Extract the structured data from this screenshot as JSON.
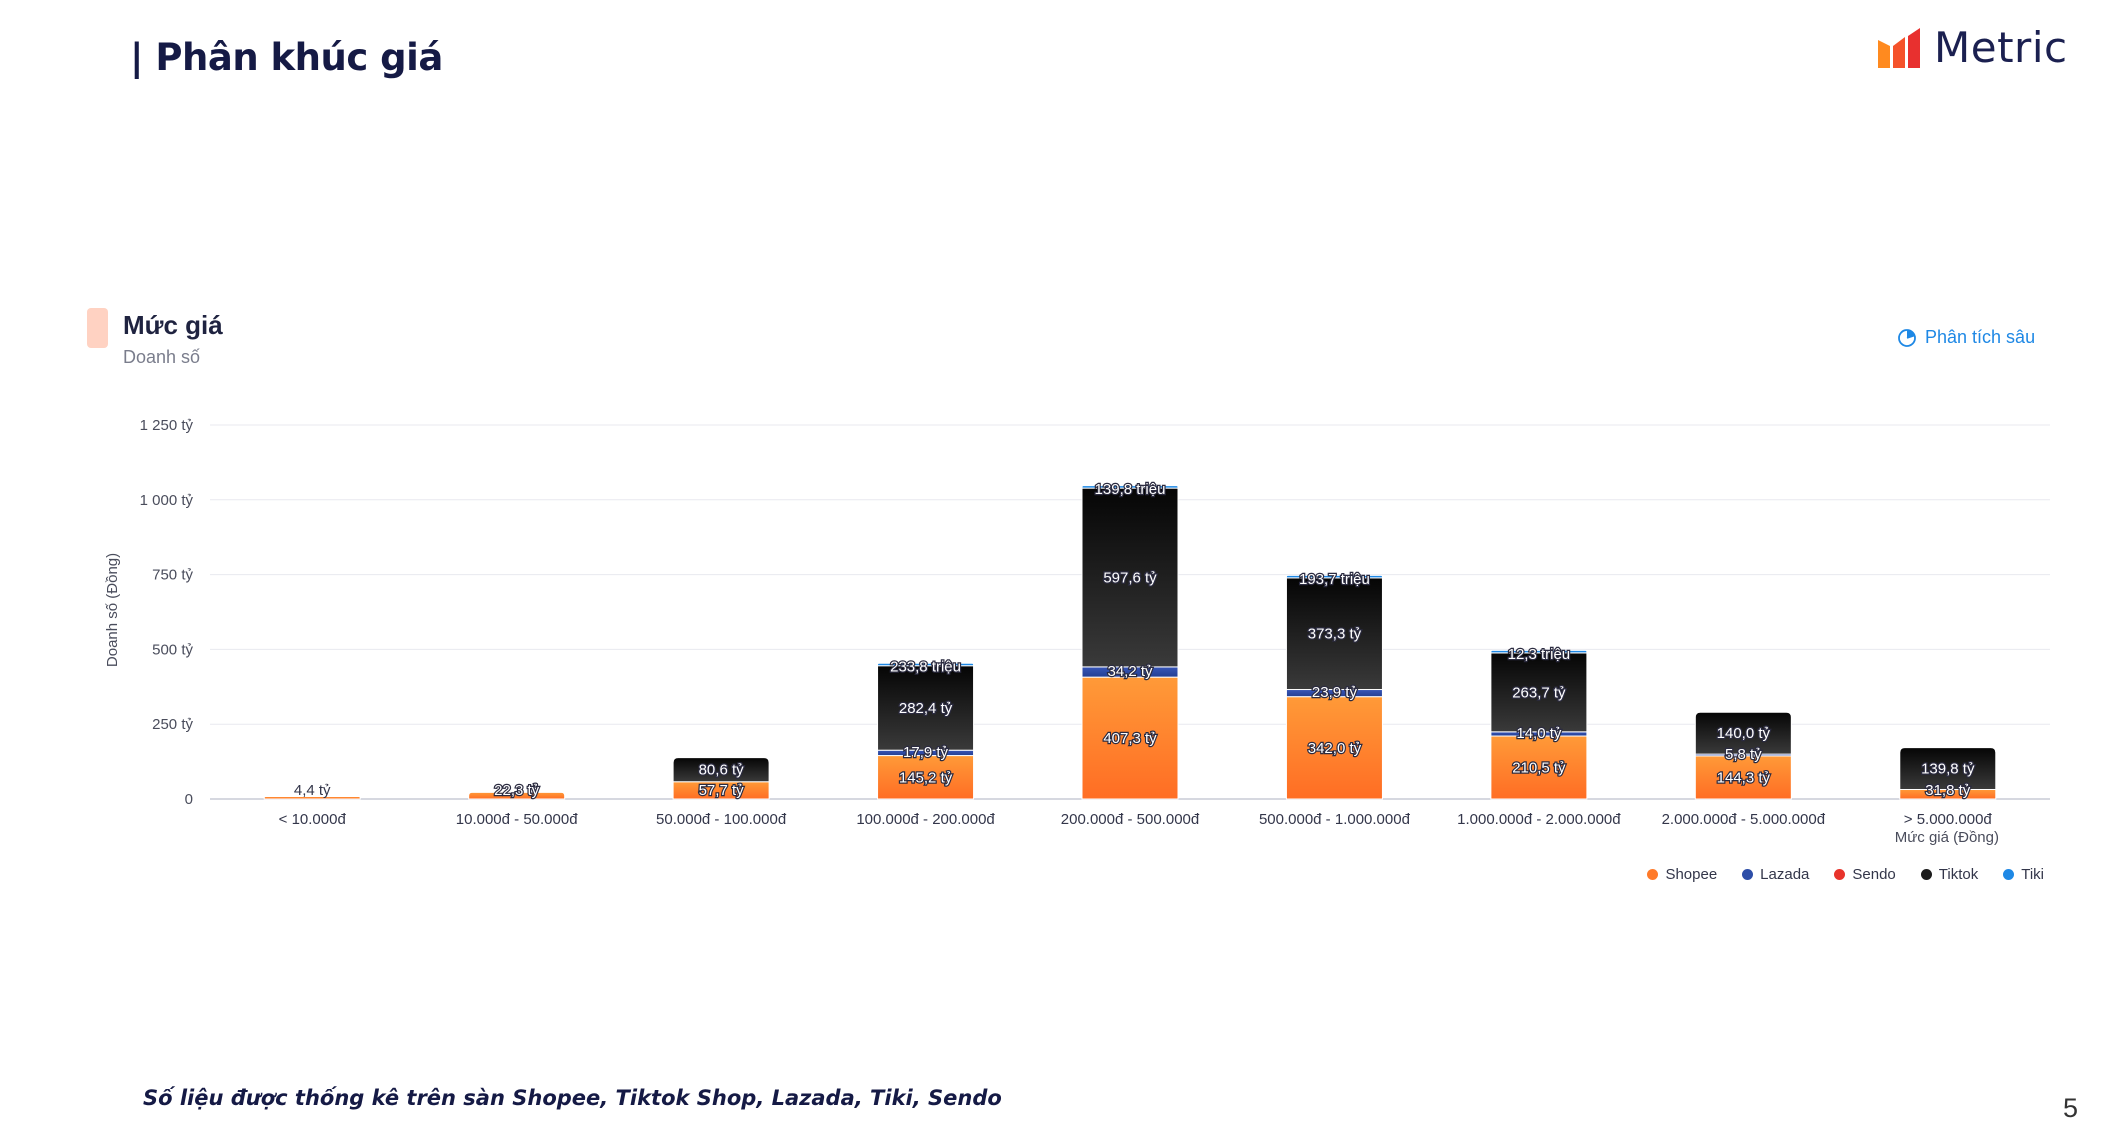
{
  "slide": {
    "title": "| Phân khúc giá",
    "footnote": "Số liệu được thống kê trên sàn Shopee, Tiktok Shop, Lazada, Tiki, Sendo",
    "page_number": "5"
  },
  "logo": {
    "text": "Metric",
    "icon": "bar-chart-logo-icon",
    "colors": [
      "#ff8a1f",
      "#f5522a",
      "#e8302f"
    ]
  },
  "card": {
    "title": "Mức giá",
    "subtitle": "Doanh số",
    "accent_color": "#ffd2c2"
  },
  "action": {
    "label": "Phân tích sâu",
    "icon": "pie-chart-icon",
    "color": "#1e88e5"
  },
  "chart_data": {
    "type": "bar",
    "stacked": true,
    "categories": [
      "< 10.000đ",
      "10.000đ - 50.000đ",
      "50.000đ - 100.000đ",
      "100.000đ - 200.000đ",
      "200.000đ - 500.000đ",
      "500.000đ - 1.000.000đ",
      "1.000.000đ - 2.000.000đ",
      "2.000.000đ - 5.000.000đ",
      "> 5.000.000đ"
    ],
    "xlabel": "Mức giá (Đồng)",
    "ylabel": "Doanh số (Đồng)",
    "ylim": [
      0,
      1250
    ],
    "yticks": [
      0,
      250,
      500,
      750,
      1000,
      1250
    ],
    "ytick_labels": [
      "0",
      "250 tỷ",
      "500 tỷ",
      "750 tỷ",
      "1 000 tỷ",
      "1 250 tỷ"
    ],
    "grid": true,
    "legend_position": "bottom-right",
    "series": [
      {
        "name": "Shopee",
        "color": "#ff7a29",
        "values": [
          4.4,
          22.3,
          57.7,
          145.2,
          407.3,
          342.0,
          210.5,
          144.3,
          31.8
        ],
        "labels": [
          "4,4 tỷ",
          "22,3 tỷ",
          "57,7 tỷ",
          "145,2 tỷ",
          "407,3 tỷ",
          "342,0 tỷ",
          "210,5 tỷ",
          "144,3 tỷ",
          "31,8 tỷ"
        ]
      },
      {
        "name": "Lazada",
        "color": "#2d4ea8",
        "values": [
          0,
          0,
          0,
          17.9,
          34.2,
          23.9,
          14.0,
          5.8,
          0
        ],
        "labels": [
          "",
          "",
          "",
          "17,9 tỷ",
          "34,2 tỷ",
          "23,9 tỷ",
          "14,0 tỷ",
          "5,8 tỷ",
          ""
        ]
      },
      {
        "name": "Sendo",
        "color": "#e8332b",
        "values": [
          0,
          0,
          0,
          0,
          0,
          0,
          0,
          0,
          0
        ],
        "labels": [
          "",
          "",
          "",
          "",
          "",
          "",
          "",
          "",
          ""
        ]
      },
      {
        "name": "Tiktok",
        "color": "#1c1c1c",
        "values": [
          0,
          0,
          80.6,
          282.4,
          597.6,
          373.3,
          263.7,
          140.0,
          139.8
        ],
        "labels": [
          "",
          "",
          "80,6 tỷ",
          "282,4 tỷ",
          "597,6 tỷ",
          "373,3 tỷ",
          "263,7 tỷ",
          "140,0 tỷ",
          "139,8 tỷ"
        ]
      },
      {
        "name": "Tiki",
        "color": "#1e88e5",
        "values": [
          0,
          0,
          0,
          0.2338,
          0.1398,
          0.1937,
          0.0123,
          0,
          0
        ],
        "labels": [
          "",
          "",
          "",
          "233,8 triệu",
          "139,8 triệu",
          "193,7 triệu",
          "12,3 triệu",
          "",
          ""
        ]
      }
    ]
  }
}
